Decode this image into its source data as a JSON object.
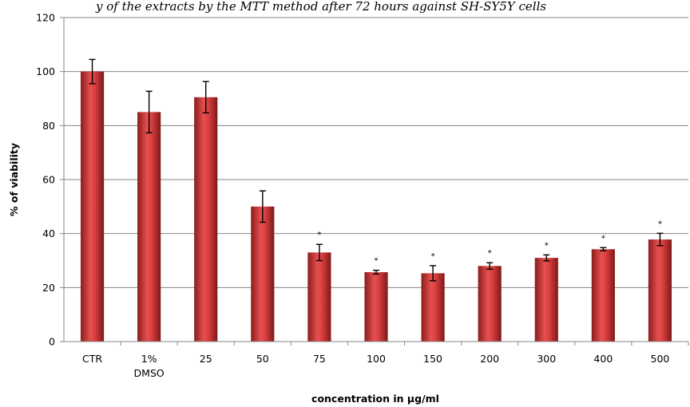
{
  "chart_data": {
    "type": "bar",
    "categories": [
      "CTR",
      "1%\nDMSO",
      "25",
      "50",
      "75",
      "100",
      "150",
      "200",
      "300",
      "400",
      "500"
    ],
    "values": [
      100,
      85,
      90.5,
      50,
      33,
      25.7,
      25.3,
      28,
      31,
      34.2,
      37.8
    ],
    "errors": [
      4.5,
      7.7,
      5.8,
      5.8,
      3,
      0.7,
      2.8,
      1.2,
      1.1,
      0.6,
      2.3
    ],
    "significance": [
      "",
      "",
      "",
      "",
      "*",
      "*",
      "*",
      "*",
      "*",
      "*",
      "*"
    ],
    "title": "",
    "top_caption": "y of the extracts by the MTT method after 72 hours against SH-SY5Y cells",
    "xlabel": "concentration in µg/ml",
    "ylabel": "% of viability",
    "ylim": [
      0,
      120
    ],
    "yticks": [
      0,
      20,
      40,
      60,
      80,
      100,
      120
    ],
    "grid": true,
    "legend": "none",
    "bar_color": "#d63838"
  }
}
